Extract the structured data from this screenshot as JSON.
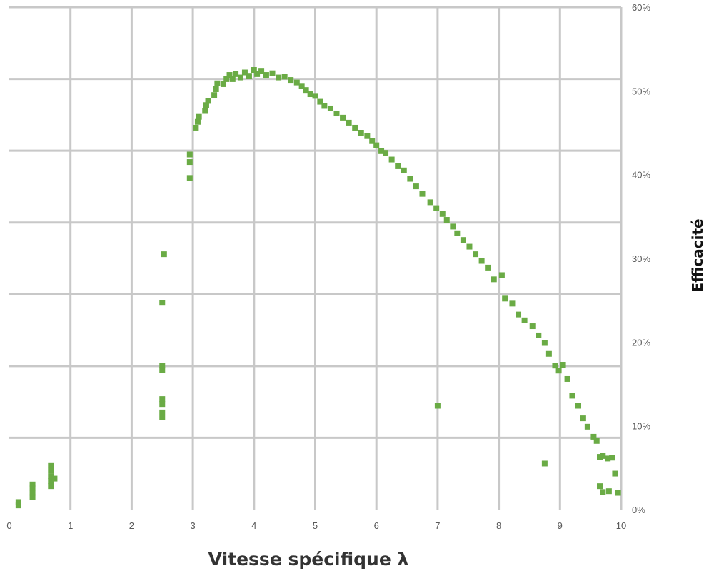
{
  "chart_data": {
    "type": "scatter",
    "xlabel": "Vitesse spécifique λ",
    "ylabel": "Efficacité",
    "xlim": [
      0,
      10
    ],
    "ylim": [
      0,
      60
    ],
    "x_ticks": [
      0,
      1,
      2,
      3,
      4,
      5,
      6,
      7,
      8,
      9,
      10
    ],
    "y_ticks": [
      "0%",
      "10%",
      "20%",
      "30%",
      "40%",
      "50%",
      "60%"
    ],
    "y_tick_values": [
      0,
      10,
      20,
      30,
      40,
      50,
      60
    ],
    "y_axis_side": "right",
    "grid": true,
    "colors": {
      "points": "#6aab45",
      "grid": "#c8c8c8",
      "text": "#595959"
    },
    "series": [
      {
        "values": [
          [
            0.15,
            0.5
          ],
          [
            0.15,
            0.9
          ],
          [
            0.38,
            1.5
          ],
          [
            0.38,
            2.0
          ],
          [
            0.38,
            2.6
          ],
          [
            0.38,
            3.0
          ],
          [
            0.68,
            2.8
          ],
          [
            0.68,
            3.4
          ],
          [
            0.68,
            4.0
          ],
          [
            0.68,
            4.7
          ],
          [
            0.68,
            5.3
          ],
          [
            0.74,
            3.7
          ],
          [
            2.5,
            11.0
          ],
          [
            2.5,
            11.6
          ],
          [
            2.5,
            12.6
          ],
          [
            2.5,
            13.2
          ],
          [
            2.5,
            16.7
          ],
          [
            2.5,
            17.2
          ],
          [
            2.5,
            24.7
          ],
          [
            2.53,
            30.5
          ],
          [
            2.95,
            39.6
          ],
          [
            2.95,
            41.5
          ],
          [
            2.95,
            42.4
          ],
          [
            3.05,
            45.6
          ],
          [
            3.08,
            46.3
          ],
          [
            3.1,
            46.9
          ],
          [
            3.2,
            47.6
          ],
          [
            3.22,
            48.3
          ],
          [
            3.25,
            48.8
          ],
          [
            3.35,
            49.5
          ],
          [
            3.38,
            50.2
          ],
          [
            3.4,
            50.9
          ],
          [
            3.5,
            50.8
          ],
          [
            3.55,
            51.4
          ],
          [
            3.6,
            51.9
          ],
          [
            3.65,
            51.4
          ],
          [
            3.7,
            52.0
          ],
          [
            3.78,
            51.6
          ],
          [
            3.85,
            52.2
          ],
          [
            3.92,
            51.8
          ],
          [
            4.0,
            52.5
          ],
          [
            4.05,
            52.0
          ],
          [
            4.12,
            52.4
          ],
          [
            4.2,
            51.9
          ],
          [
            4.3,
            52.1
          ],
          [
            4.4,
            51.6
          ],
          [
            4.5,
            51.7
          ],
          [
            4.6,
            51.3
          ],
          [
            4.7,
            51.0
          ],
          [
            4.78,
            50.6
          ],
          [
            4.85,
            50.1
          ],
          [
            4.92,
            49.6
          ],
          [
            5.0,
            49.4
          ],
          [
            5.08,
            48.7
          ],
          [
            5.15,
            48.2
          ],
          [
            5.25,
            47.9
          ],
          [
            5.35,
            47.3
          ],
          [
            5.45,
            46.8
          ],
          [
            5.55,
            46.2
          ],
          [
            5.65,
            45.6
          ],
          [
            5.75,
            45.0
          ],
          [
            5.85,
            44.6
          ],
          [
            5.93,
            44.0
          ],
          [
            6.0,
            43.5
          ],
          [
            6.08,
            42.8
          ],
          [
            6.15,
            42.6
          ],
          [
            6.25,
            41.8
          ],
          [
            6.35,
            41.0
          ],
          [
            6.45,
            40.5
          ],
          [
            6.55,
            39.5
          ],
          [
            6.65,
            38.6
          ],
          [
            6.75,
            37.7
          ],
          [
            6.88,
            36.7
          ],
          [
            6.98,
            36.0
          ],
          [
            7.08,
            35.3
          ],
          [
            7.15,
            34.6
          ],
          [
            7.25,
            33.8
          ],
          [
            7.32,
            33.0
          ],
          [
            7.42,
            32.2
          ],
          [
            7.52,
            31.4
          ],
          [
            7.62,
            30.5
          ],
          [
            7.72,
            29.7
          ],
          [
            7.82,
            28.9
          ],
          [
            7.92,
            27.5
          ],
          [
            8.05,
            28.0
          ],
          [
            8.1,
            25.2
          ],
          [
            8.22,
            24.6
          ],
          [
            8.32,
            23.3
          ],
          [
            8.42,
            22.6
          ],
          [
            8.55,
            21.9
          ],
          [
            8.65,
            20.8
          ],
          [
            8.75,
            19.9
          ],
          [
            8.82,
            18.6
          ],
          [
            8.92,
            17.2
          ],
          [
            8.98,
            16.6
          ],
          [
            9.05,
            17.3
          ],
          [
            9.12,
            15.6
          ],
          [
            9.2,
            13.6
          ],
          [
            9.3,
            12.4
          ],
          [
            9.38,
            10.9
          ],
          [
            9.45,
            9.9
          ],
          [
            9.55,
            8.7
          ],
          [
            9.6,
            8.2
          ],
          [
            9.65,
            6.3
          ],
          [
            9.7,
            6.4
          ],
          [
            9.78,
            6.1
          ],
          [
            9.85,
            6.2
          ],
          [
            9.65,
            2.8
          ],
          [
            9.7,
            2.1
          ],
          [
            9.8,
            2.2
          ],
          [
            9.9,
            4.3
          ],
          [
            9.95,
            2.0
          ],
          [
            8.75,
            5.5
          ],
          [
            7.0,
            12.4
          ]
        ]
      }
    ]
  }
}
